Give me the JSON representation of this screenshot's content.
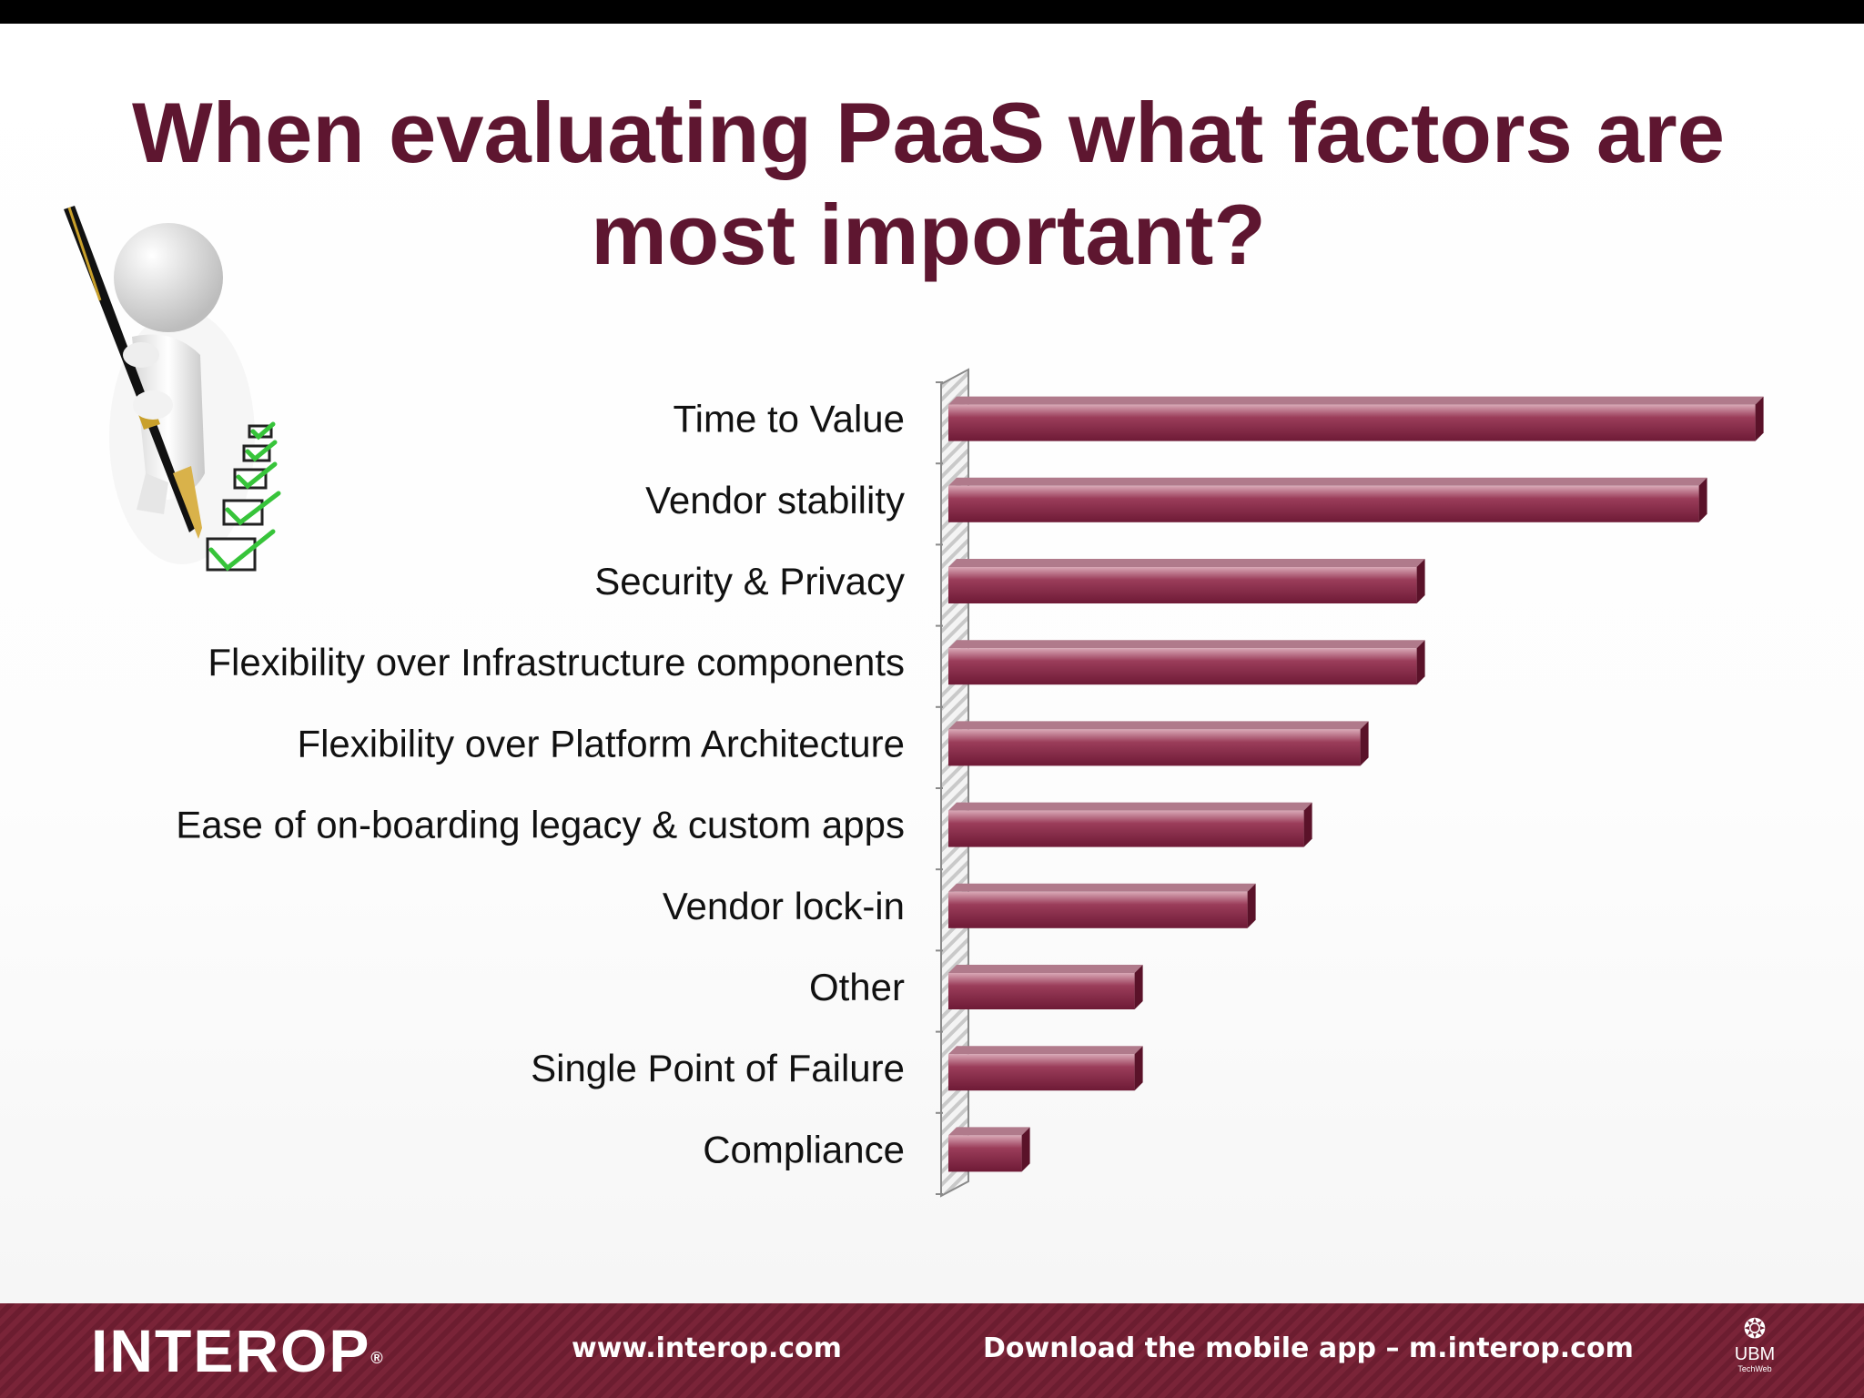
{
  "slide": {
    "title_line1": "When evaluating PaaS what factors are",
    "title_line2": "most important?"
  },
  "chart_data": {
    "type": "bar",
    "orientation": "horizontal",
    "title": "When evaluating PaaS what factors are most important?",
    "categories": [
      "Time to Value",
      "Vendor stability",
      "Security & Privacy",
      "Flexibility over Infrastructure components",
      "Flexibility over Platform Architecture",
      "Ease of on-boarding legacy & custom apps",
      "Vendor lock-in",
      "Other",
      "Single Point of Failure",
      "Compliance"
    ],
    "values": [
      14.3,
      13.3,
      8.3,
      8.3,
      7.3,
      6.3,
      5.3,
      3.3,
      3.3,
      1.3
    ],
    "xlim": [
      0,
      15
    ],
    "grid": false,
    "legend": "none",
    "bar_color": "#7d2340",
    "bar_top_color": "#b07a8b"
  },
  "footer": {
    "logo": "INTEROP",
    "logo_mark": "®",
    "url": "www.interop.com",
    "download": "Download the mobile app – m.interop.com",
    "ubm_name": "UBM",
    "ubm_sub": "TechWeb",
    "background": "#74203a"
  }
}
